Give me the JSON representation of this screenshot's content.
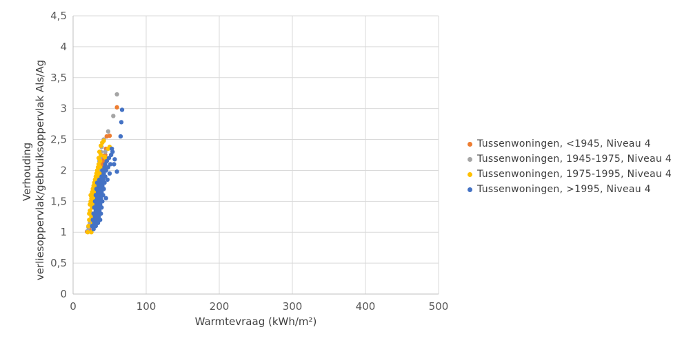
{
  "chart_data": {
    "type": "scatter",
    "xlabel": "Warmtevraag (kWh/m²)",
    "ylabel": [
      "Verhouding",
      "verliesoppervlak/gebruiksoppervlak Als/Ag"
    ],
    "xlim": [
      0,
      500
    ],
    "ylim": [
      0,
      4.5
    ],
    "xticks": [
      "0",
      "100",
      "200",
      "300",
      "400",
      "500"
    ],
    "yticks": [
      "0",
      "0,5",
      "1",
      "1,5",
      "2",
      "2,5",
      "3",
      "3,5",
      "4",
      "4,5"
    ],
    "grid": true,
    "legend_position": "right",
    "series": [
      {
        "name": "Tussenwoningen, <1945, Niveau 4",
        "color": "#ED7D31",
        "points": [
          [
            19,
            1.01
          ],
          [
            22,
            1.05
          ],
          [
            24,
            1.1
          ],
          [
            25,
            1.2
          ],
          [
            26,
            1.3
          ],
          [
            27,
            1.4
          ],
          [
            28,
            1.5
          ],
          [
            29,
            1.55
          ],
          [
            30,
            1.6
          ],
          [
            31,
            1.65
          ],
          [
            32,
            1.7
          ],
          [
            33,
            1.75
          ],
          [
            34,
            1.8
          ],
          [
            35,
            1.85
          ],
          [
            36,
            1.9
          ],
          [
            37,
            1.95
          ],
          [
            38,
            2.0
          ],
          [
            39,
            2.05
          ],
          [
            40,
            2.1
          ],
          [
            41,
            2.15
          ],
          [
            42,
            2.2
          ],
          [
            44,
            2.25
          ],
          [
            45,
            2.35
          ],
          [
            46,
            2.55
          ],
          [
            50,
            2.56
          ],
          [
            60,
            3.02
          ]
        ]
      },
      {
        "name": "Tussenwoningen, 1945-1975, Niveau 4",
        "color": "#A5A5A5",
        "points": [
          [
            20,
            1.02
          ],
          [
            21,
            1.08
          ],
          [
            23,
            1.15
          ],
          [
            25,
            1.3
          ],
          [
            27,
            1.45
          ],
          [
            29,
            1.55
          ],
          [
            31,
            1.7
          ],
          [
            33,
            1.85
          ],
          [
            34,
            1.95
          ],
          [
            35,
            2.0
          ],
          [
            36,
            2.15
          ],
          [
            37,
            2.2
          ],
          [
            38,
            2.3
          ],
          [
            39,
            2.38
          ],
          [
            40,
            2.45
          ],
          [
            42,
            2.5
          ],
          [
            44,
            2.3
          ],
          [
            46,
            2.15
          ],
          [
            48,
            2.63
          ],
          [
            55,
            2.88
          ],
          [
            60,
            3.23
          ]
        ]
      },
      {
        "name": "Tussenwoningen, 1975-1995, Niveau 4",
        "color": "#FFC000",
        "points": [
          [
            20,
            1.0
          ],
          [
            21,
            1.1
          ],
          [
            22,
            1.2
          ],
          [
            22,
            1.3
          ],
          [
            23,
            1.35
          ],
          [
            23,
            1.45
          ],
          [
            24,
            1.5
          ],
          [
            24,
            1.6
          ],
          [
            25,
            1.0
          ],
          [
            25,
            1.25
          ],
          [
            25,
            1.55
          ],
          [
            26,
            1.4
          ],
          [
            26,
            1.65
          ],
          [
            27,
            1.15
          ],
          [
            27,
            1.5
          ],
          [
            27,
            1.7
          ],
          [
            28,
            1.3
          ],
          [
            28,
            1.6
          ],
          [
            28,
            1.75
          ],
          [
            29,
            1.45
          ],
          [
            29,
            1.8
          ],
          [
            30,
            1.55
          ],
          [
            30,
            1.85
          ],
          [
            31,
            1.65
          ],
          [
            31,
            1.9
          ],
          [
            32,
            1.75
          ],
          [
            32,
            1.95
          ],
          [
            33,
            1.8
          ],
          [
            33,
            2.0
          ],
          [
            34,
            1.9
          ],
          [
            34,
            2.05
          ],
          [
            35,
            2.1
          ],
          [
            35,
            2.2
          ],
          [
            36,
            1.95
          ],
          [
            36,
            2.3
          ],
          [
            37,
            2.05
          ],
          [
            37,
            2.15
          ],
          [
            38,
            2.25
          ],
          [
            38,
            2.4
          ],
          [
            40,
            2.45
          ],
          [
            42,
            2.48
          ],
          [
            43,
            2.22
          ],
          [
            45,
            2.2
          ],
          [
            48,
            2.35
          ],
          [
            50,
            2.38
          ]
        ]
      },
      {
        "name": "Tussenwoningen, >1995, Niveau 4",
        "color": "#4472C4",
        "points": [
          [
            26,
            1.1
          ],
          [
            27,
            1.2
          ],
          [
            28,
            1.05
          ],
          [
            28,
            1.3
          ],
          [
            29,
            1.15
          ],
          [
            29,
            1.4
          ],
          [
            30,
            1.25
          ],
          [
            30,
            1.5
          ],
          [
            31,
            1.1
          ],
          [
            31,
            1.35
          ],
          [
            31,
            1.6
          ],
          [
            32,
            1.2
          ],
          [
            32,
            1.45
          ],
          [
            32,
            1.7
          ],
          [
            33,
            1.3
          ],
          [
            33,
            1.55
          ],
          [
            33,
            1.8
          ],
          [
            34,
            1.15
          ],
          [
            34,
            1.4
          ],
          [
            34,
            1.65
          ],
          [
            35,
            1.25
          ],
          [
            35,
            1.5
          ],
          [
            35,
            1.75
          ],
          [
            36,
            1.35
          ],
          [
            36,
            1.6
          ],
          [
            36,
            1.85
          ],
          [
            37,
            1.2
          ],
          [
            37,
            1.45
          ],
          [
            37,
            1.7
          ],
          [
            38,
            1.3
          ],
          [
            38,
            1.55
          ],
          [
            38,
            1.8
          ],
          [
            39,
            1.4
          ],
          [
            39,
            1.65
          ],
          [
            39,
            1.9
          ],
          [
            40,
            1.5
          ],
          [
            40,
            1.75
          ],
          [
            40,
            2.0
          ],
          [
            41,
            1.6
          ],
          [
            41,
            1.85
          ],
          [
            42,
            1.7
          ],
          [
            42,
            1.95
          ],
          [
            43,
            1.8
          ],
          [
            43,
            2.05
          ],
          [
            44,
            1.9
          ],
          [
            44,
            2.1
          ],
          [
            45,
            1.55
          ],
          [
            45,
            2.0
          ],
          [
            46,
            2.15
          ],
          [
            47,
            1.85
          ],
          [
            48,
            2.05
          ],
          [
            49,
            2.2
          ],
          [
            50,
            1.95
          ],
          [
            51,
            2.1
          ],
          [
            52,
            2.25
          ],
          [
            53,
            2.35
          ],
          [
            54,
            2.3
          ],
          [
            56,
            2.1
          ],
          [
            57,
            2.18
          ],
          [
            60,
            1.98
          ],
          [
            65,
            2.55
          ],
          [
            66,
            2.78
          ],
          [
            67,
            2.98
          ]
        ]
      }
    ]
  }
}
